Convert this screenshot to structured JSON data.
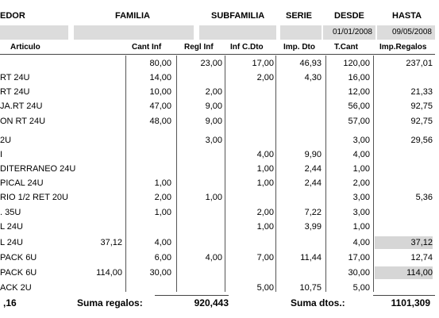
{
  "header": {
    "vendedor": "EDOR",
    "familia": "FAMILIA",
    "subfamilia": "SUBFAMILIA",
    "serie": "SERIE",
    "desde": "DESDE",
    "hasta": "HASTA",
    "desde_value": "01/01/2008",
    "hasta_value": "09/05/2008"
  },
  "columns": {
    "articulo": "Articulo",
    "cant_inf": "Cant Inf",
    "regl_inf": "Regl Inf",
    "inf_cdto": "Inf C.Dto",
    "imp_dto": "Imp. Dto",
    "tcant": "T.Cant",
    "imp_regalos": "Imp.Regalos"
  },
  "rows": [
    {
      "articulo": "",
      "extra": "",
      "cant_inf": "80,00",
      "regl_inf": "23,00",
      "inf_cdto": "17,00",
      "imp_dto": "46,93",
      "tcant": "120,00",
      "imp_regalos": "237,01",
      "shaded_regalos": false
    },
    {
      "articulo": "RT 24U",
      "extra": "",
      "cant_inf": "14,00",
      "regl_inf": "",
      "inf_cdto": "2,00",
      "imp_dto": "4,30",
      "tcant": "16,00",
      "imp_regalos": "",
      "shaded_regalos": false
    },
    {
      "articulo": "RT 24U",
      "extra": "",
      "cant_inf": "10,00",
      "regl_inf": "2,00",
      "inf_cdto": "",
      "imp_dto": "",
      "tcant": "12,00",
      "imp_regalos": "21,33",
      "shaded_regalos": false
    },
    {
      "articulo": "JA.RT 24U",
      "extra": "",
      "cant_inf": "47,00",
      "regl_inf": "9,00",
      "inf_cdto": "",
      "imp_dto": "",
      "tcant": "56,00",
      "imp_regalos": "92,75",
      "shaded_regalos": false
    },
    {
      "articulo": "ON RT 24U",
      "extra": "",
      "cant_inf": "48,00",
      "regl_inf": "9,00",
      "inf_cdto": "",
      "imp_dto": "",
      "tcant": "57,00",
      "imp_regalos": "92,75",
      "shaded_regalos": false
    },
    {
      "articulo": "2U",
      "extra": "",
      "cant_inf": "",
      "regl_inf": "3,00",
      "inf_cdto": "",
      "imp_dto": "",
      "tcant": "3,00",
      "imp_regalos": "29,56",
      "shaded_regalos": false
    },
    {
      "articulo": "I",
      "extra": "",
      "cant_inf": "",
      "regl_inf": "",
      "inf_cdto": "4,00",
      "imp_dto": "9,90",
      "tcant": "4,00",
      "imp_regalos": "",
      "shaded_regalos": false
    },
    {
      "articulo": "DITERRANEO 24U",
      "extra": "",
      "cant_inf": "",
      "regl_inf": "",
      "inf_cdto": "1,00",
      "imp_dto": "2,44",
      "tcant": "1,00",
      "imp_regalos": "",
      "shaded_regalos": false
    },
    {
      "articulo": "PICAL 24U",
      "extra": "",
      "cant_inf": "1,00",
      "regl_inf": "",
      "inf_cdto": "1,00",
      "imp_dto": "2,44",
      "tcant": "2,00",
      "imp_regalos": "",
      "shaded_regalos": false
    },
    {
      "articulo": "RIO 1/2 RET 20U",
      "extra": "",
      "cant_inf": "2,00",
      "regl_inf": "1,00",
      "inf_cdto": "",
      "imp_dto": "",
      "tcant": "3,00",
      "imp_regalos": "5,36",
      "shaded_regalos": false
    },
    {
      "articulo": ". 35U",
      "extra": "",
      "cant_inf": "1,00",
      "regl_inf": "",
      "inf_cdto": "2,00",
      "imp_dto": "7,22",
      "tcant": "3,00",
      "imp_regalos": "",
      "shaded_regalos": false
    },
    {
      "articulo": "L 24U",
      "extra": "",
      "cant_inf": "",
      "regl_inf": "",
      "inf_cdto": "1,00",
      "imp_dto": "3,99",
      "tcant": "1,00",
      "imp_regalos": "",
      "shaded_regalos": false
    },
    {
      "articulo": "L  24U",
      "extra": "37,12",
      "cant_inf": "4,00",
      "regl_inf": "",
      "inf_cdto": "",
      "imp_dto": "",
      "tcant": "4,00",
      "imp_regalos": "37,12",
      "shaded_regalos": true
    },
    {
      "articulo": "PACK 6U",
      "extra": "",
      "cant_inf": "6,00",
      "regl_inf": "4,00",
      "inf_cdto": "7,00",
      "imp_dto": "11,44",
      "tcant": "17,00",
      "imp_regalos": "12,74",
      "shaded_regalos": false
    },
    {
      "articulo": "PACK 6U",
      "extra": "114,00",
      "cant_inf": "30,00",
      "regl_inf": "",
      "inf_cdto": "",
      "imp_dto": "",
      "tcant": "30,00",
      "imp_regalos": "114,00",
      "shaded_regalos": true
    },
    {
      "articulo": "ACK 2U",
      "extra": "",
      "cant_inf": "",
      "regl_inf": "",
      "inf_cdto": "5,00",
      "imp_dto": "10,75",
      "tcant": "5,00",
      "imp_regalos": "",
      "shaded_regalos": false
    }
  ],
  "totals": {
    "left_value": ",16",
    "suma_regalos_label": "Suma regalos:",
    "suma_regalos_value": "920,443",
    "suma_dtos_label": "Suma dtos.:",
    "suma_dtos_value": "1101,309"
  },
  "colors": {
    "field_bg": "#dcdcdc",
    "shaded_cell": "#d6d6d6"
  }
}
